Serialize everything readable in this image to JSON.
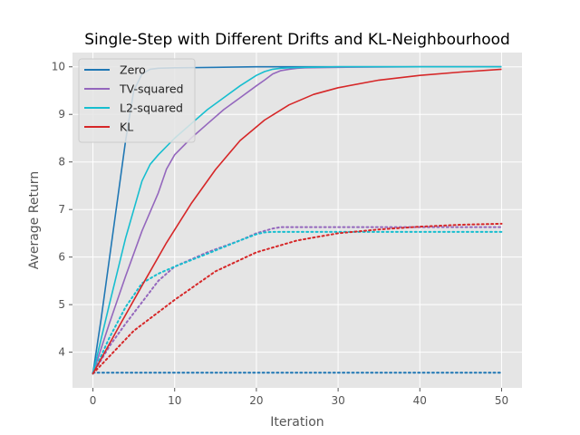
{
  "chart_data": {
    "type": "line",
    "title": "Single-Step with Different Drifts and KL-Neighbourhood",
    "xlabel": "Iteration",
    "ylabel": "Average Return",
    "xlim": [
      -2.5,
      52.5
    ],
    "ylim": [
      3.25,
      10.3
    ],
    "xticks": [
      0,
      10,
      20,
      30,
      40,
      50
    ],
    "yticks": [
      4,
      5,
      6,
      7,
      8,
      9,
      10
    ],
    "grid": true,
    "legend_position": "top-left",
    "style": "ggplot",
    "colors": {
      "background": "#E5E5E5",
      "grid": "#FFFFFF",
      "tick": "#555555"
    },
    "series": [
      {
        "name": "Zero",
        "color": "#1F77B4",
        "style": "solid",
        "x": [
          0,
          1,
          2,
          3,
          4,
          5,
          6,
          7,
          8,
          10,
          15,
          20,
          25,
          30,
          40,
          50
        ],
        "y": [
          3.55,
          4.7,
          5.95,
          7.2,
          8.45,
          9.5,
          9.85,
          9.95,
          9.97,
          9.98,
          9.99,
          10.0,
          10.0,
          10.0,
          10.0,
          10.0
        ]
      },
      {
        "name": "TV-squared",
        "color": "#9467BD",
        "style": "solid",
        "x": [
          0,
          2,
          4,
          6,
          8,
          9,
          10,
          12,
          14,
          16,
          18,
          20,
          21,
          22,
          23,
          24,
          25,
          26,
          30,
          40,
          50
        ],
        "y": [
          3.55,
          4.6,
          5.6,
          6.55,
          7.35,
          7.85,
          8.15,
          8.5,
          8.8,
          9.1,
          9.35,
          9.6,
          9.72,
          9.85,
          9.92,
          9.95,
          9.97,
          9.98,
          9.99,
          10.0,
          10.0
        ]
      },
      {
        "name": "L2-squared",
        "color": "#17BECF",
        "style": "solid",
        "x": [
          0,
          2,
          4,
          6,
          7,
          8,
          10,
          12,
          14,
          16,
          18,
          20,
          21,
          22,
          23,
          24,
          26,
          30,
          40,
          50
        ],
        "y": [
          3.55,
          5.0,
          6.4,
          7.6,
          7.95,
          8.15,
          8.5,
          8.8,
          9.1,
          9.35,
          9.6,
          9.82,
          9.9,
          9.95,
          9.97,
          9.98,
          9.99,
          10.0,
          10.0,
          10.0
        ]
      },
      {
        "name": "KL",
        "color": "#D62728",
        "style": "solid",
        "x": [
          0,
          3,
          6,
          9,
          12,
          15,
          18,
          21,
          24,
          27,
          30,
          35,
          40,
          45,
          50
        ],
        "y": [
          3.55,
          4.48,
          5.4,
          6.3,
          7.12,
          7.84,
          8.45,
          8.88,
          9.2,
          9.42,
          9.56,
          9.72,
          9.82,
          9.89,
          9.95
        ]
      },
      {
        "name": "",
        "color": "#1F77B4",
        "style": "dotted",
        "x": [
          0,
          50
        ],
        "y": [
          3.57,
          3.57
        ]
      },
      {
        "name": "",
        "color": "#9467BD",
        "style": "dotted",
        "x": [
          0,
          2,
          4,
          6,
          8,
          10,
          14,
          18,
          20,
          22,
          23,
          30,
          40,
          50
        ],
        "y": [
          3.55,
          4.12,
          4.6,
          5.05,
          5.5,
          5.8,
          6.1,
          6.35,
          6.5,
          6.6,
          6.63,
          6.63,
          6.63,
          6.63
        ]
      },
      {
        "name": "",
        "color": "#17BECF",
        "style": "dotted",
        "x": [
          0,
          2,
          4,
          6,
          8,
          10,
          14,
          18,
          20,
          21,
          22,
          30,
          40,
          50
        ],
        "y": [
          3.55,
          4.3,
          4.95,
          5.45,
          5.65,
          5.8,
          6.07,
          6.35,
          6.48,
          6.52,
          6.53,
          6.53,
          6.53,
          6.53
        ]
      },
      {
        "name": "",
        "color": "#D62728",
        "style": "dotted",
        "x": [
          0,
          5,
          10,
          15,
          20,
          25,
          30,
          35,
          40,
          45,
          50
        ],
        "y": [
          3.55,
          4.45,
          5.1,
          5.7,
          6.1,
          6.35,
          6.5,
          6.58,
          6.64,
          6.68,
          6.7
        ]
      }
    ]
  }
}
